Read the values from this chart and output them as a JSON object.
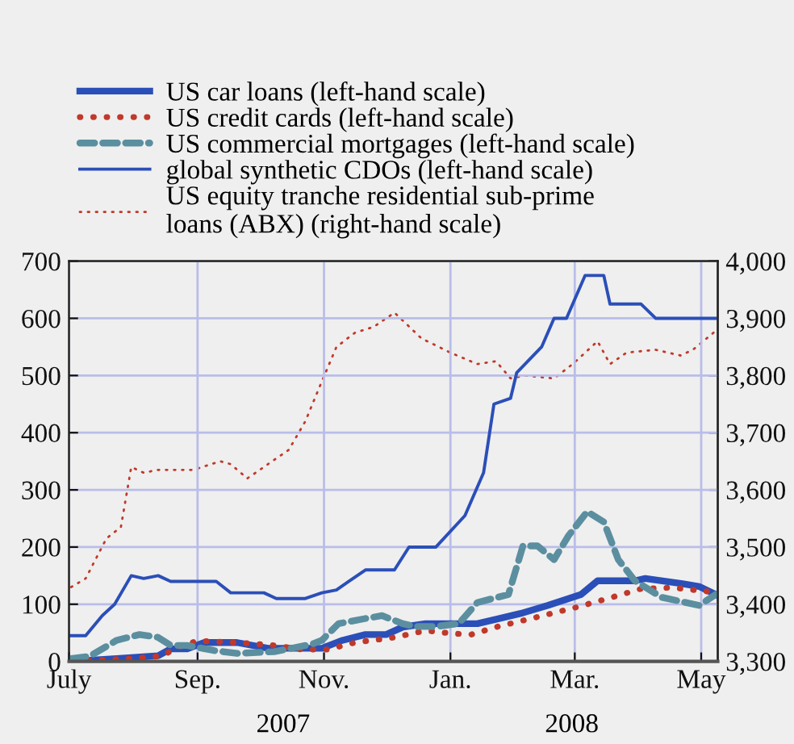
{
  "chart_data": {
    "type": "line",
    "annotations": [
      "2007",
      "2008"
    ],
    "xlim": [
      "2007-07-01",
      "2008-05-09"
    ],
    "xticks": [
      {
        "value": "2007-07-01",
        "label": "July"
      },
      {
        "value": "2007-09-01",
        "label": "Sep."
      },
      {
        "value": "2007-11-01",
        "label": "Nov."
      },
      {
        "value": "2008-01-01",
        "label": "Jan."
      },
      {
        "value": "2008-03-01",
        "label": "Mar."
      },
      {
        "value": "2008-05-01",
        "label": "May"
      }
    ],
    "ylim": [
      0,
      700
    ],
    "yticks": [
      0,
      100,
      200,
      300,
      400,
      500,
      600,
      700
    ],
    "y2lim": [
      3300,
      4000
    ],
    "y2ticks": [
      {
        "value": 3300,
        "label": "3,300"
      },
      {
        "value": 3400,
        "label": "3,400"
      },
      {
        "value": 3500,
        "label": "3,500"
      },
      {
        "value": 3600,
        "label": "3,600"
      },
      {
        "value": 3700,
        "label": "3,700"
      },
      {
        "value": 3800,
        "label": "3,800"
      },
      {
        "value": 3900,
        "label": "3,900"
      },
      {
        "value": 4000,
        "label": "4,000"
      }
    ],
    "grid": true,
    "legend": "top left",
    "series": [
      {
        "name": "US car loans (left-hand scale)",
        "color": "#2b4fb8",
        "line_style": "solid",
        "x": [
          "2007-07-02",
          "2007-07-24",
          "2007-08-13",
          "2007-08-19",
          "2007-08-27",
          "2007-09-04",
          "2007-09-20",
          "2007-10-05",
          "2007-10-31",
          "2007-11-10",
          "2007-11-21",
          "2007-12-01",
          "2007-12-09",
          "2007-12-20",
          "2008-01-14",
          "2008-02-04",
          "2008-02-17",
          "2008-03-04",
          "2008-03-12",
          "2008-03-30",
          "2008-04-04",
          "2008-04-22",
          "2008-04-30",
          "2008-05-08"
        ],
        "values": [
          0,
          5,
          10,
          22,
          22,
          33,
          33,
          23,
          23,
          37,
          47,
          47,
          60,
          66,
          66,
          84,
          98,
          117,
          141,
          141,
          145,
          136,
          131,
          117
        ]
      },
      {
        "name": "US credit cards (left-hand scale)",
        "color": "#c0392b",
        "line_style": "dotted",
        "x": [
          "2007-07-04",
          "2007-07-30",
          "2007-08-14",
          "2007-08-25",
          "2007-09-01",
          "2007-09-20",
          "2007-10-08",
          "2007-10-21",
          "2007-11-03",
          "2007-11-16",
          "2007-12-05",
          "2007-12-20",
          "2008-01-01",
          "2008-01-11",
          "2008-01-24",
          "2008-02-09",
          "2008-03-01",
          "2008-03-15",
          "2008-04-02",
          "2008-04-17",
          "2008-05-05"
        ],
        "values": [
          0,
          5,
          9,
          28,
          36,
          33,
          28,
          21,
          21,
          33,
          42,
          54,
          49,
          47,
          61,
          75,
          94,
          108,
          127,
          129,
          122
        ]
      },
      {
        "name": "US commercial mortgages (left-hand scale)",
        "color": "#5b8fa0",
        "line_style": "dashed",
        "x": [
          "2007-07-02",
          "2007-07-11",
          "2007-07-24",
          "2007-08-04",
          "2007-08-13",
          "2007-08-19",
          "2007-08-27",
          "2007-09-09",
          "2007-09-20",
          "2007-10-08",
          "2007-10-26",
          "2007-10-31",
          "2007-11-08",
          "2007-11-21",
          "2007-11-29",
          "2007-12-09",
          "2007-12-15",
          "2007-12-25",
          "2008-01-05",
          "2008-01-14",
          "2008-01-29",
          "2008-02-05",
          "2008-02-12",
          "2008-02-20",
          "2008-02-27",
          "2008-03-07",
          "2008-03-15",
          "2008-03-22",
          "2008-03-30",
          "2008-04-12",
          "2008-04-30",
          "2008-05-08"
        ],
        "values": [
          5,
          9,
          37,
          47,
          42,
          28,
          28,
          19,
          14,
          17,
          30,
          37,
          66,
          75,
          80,
          66,
          61,
          61,
          66,
          103,
          117,
          202,
          202,
          178,
          220,
          262,
          244,
          178,
          141,
          112,
          98,
          117
        ]
      },
      {
        "name": "global synthetic CDOs (left-hand scale)",
        "color": "#2b4fb8",
        "line_style": "solid",
        "x": [
          "2007-07-02",
          "2007-07-09",
          "2007-07-17",
          "2007-07-23",
          "2007-07-31",
          "2007-08-06",
          "2007-08-13",
          "2007-08-19",
          "2007-09-10",
          "2007-09-17",
          "2007-10-03",
          "2007-10-09",
          "2007-10-23",
          "2007-10-31",
          "2007-11-07",
          "2007-11-13",
          "2007-11-21",
          "2007-12-05",
          "2007-12-12",
          "2007-12-25",
          "2008-01-08",
          "2008-01-17",
          "2008-01-22",
          "2008-01-30",
          "2008-02-02",
          "2008-02-14",
          "2008-02-20",
          "2008-02-26",
          "2008-03-06",
          "2008-03-15",
          "2008-03-18",
          "2008-04-02",
          "2008-04-09",
          "2008-05-08"
        ],
        "values": [
          45,
          45,
          80,
          100,
          150,
          145,
          150,
          140,
          140,
          120,
          120,
          110,
          110,
          120,
          125,
          140,
          160,
          160,
          200,
          200,
          255,
          330,
          450,
          460,
          505,
          550,
          600,
          600,
          675,
          675,
          625,
          625,
          600,
          600
        ]
      },
      {
        "name": "US equity tranche residential sub-prime loans (ABX) (right-hand scale)",
        "color": "#c0392b",
        "line_style": "dotted",
        "axis": "y2",
        "x": [
          "2007-07-02",
          "2007-07-09",
          "2007-07-19",
          "2007-07-26",
          "2007-07-31",
          "2007-08-06",
          "2007-08-13",
          "2007-08-30",
          "2007-09-12",
          "2007-09-17",
          "2007-09-25",
          "2007-10-03",
          "2007-10-15",
          "2007-10-23",
          "2007-10-31",
          "2007-11-07",
          "2007-11-16",
          "2007-11-25",
          "2007-12-05",
          "2007-12-18",
          "2008-01-01",
          "2008-01-14",
          "2008-01-23",
          "2008-01-30",
          "2008-02-06",
          "2008-02-20",
          "2008-02-29",
          "2008-03-12",
          "2008-03-18",
          "2008-03-26",
          "2008-04-09",
          "2008-04-21",
          "2008-04-27",
          "2008-05-07"
        ],
        "values": [
          3430,
          3445,
          3515,
          3535,
          3640,
          3630,
          3635,
          3635,
          3650,
          3645,
          3620,
          3640,
          3670,
          3720,
          3790,
          3850,
          3875,
          3885,
          3910,
          3865,
          3840,
          3820,
          3825,
          3795,
          3800,
          3795,
          3820,
          3860,
          3820,
          3840,
          3845,
          3835,
          3845,
          3875
        ]
      }
    ]
  }
}
